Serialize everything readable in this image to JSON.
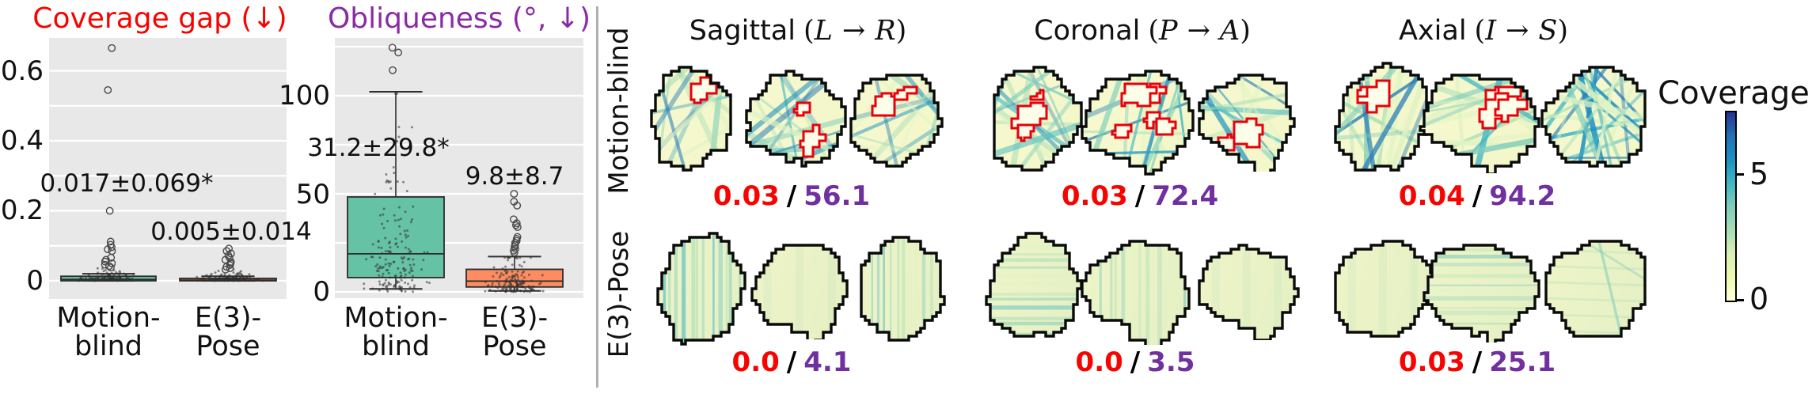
{
  "chart_data": [
    {
      "type": "box",
      "id": "coverage_gap",
      "title": "Coverage gap (↓)",
      "title_color": "#f80400",
      "ylim": [
        -0.052,
        0.694
      ],
      "yticks": [
        {
          "v": 0.6,
          "label": "0.6"
        },
        {
          "v": 0.4,
          "label": "0.4"
        },
        {
          "v": 0.2,
          "label": "0.2"
        },
        {
          "v": 0.0,
          "label": "0"
        }
      ],
      "grid_step": 0.1,
      "categories": [
        {
          "line1": "Motion-",
          "line2": "blind"
        },
        {
          "line1": "E(3)-",
          "line2": "Pose"
        }
      ],
      "series": [
        {
          "name": "Motion-blind",
          "annotation": "0.017±0.069*",
          "color": "#66c2a5",
          "box": {
            "whisker_low": 0.0,
            "q1": 0.0,
            "median": 0.004,
            "q3": 0.013,
            "whisker_high": 0.02
          },
          "outliers": [
            0.665,
            0.545,
            0.2,
            0.112,
            0.103,
            0.096,
            0.09,
            0.085,
            0.066,
            0.06,
            0.055,
            0.05,
            0.046,
            0.042,
            0.038
          ]
        },
        {
          "name": "E(3)-Pose",
          "annotation": "0.005±0.014",
          "color": "#fc8d62",
          "box": {
            "whisker_low": 0.0,
            "q1": 0.0,
            "median": 0.002,
            "q3": 0.007,
            "whisker_high": 0.013
          },
          "outliers": [
            0.092,
            0.085,
            0.078,
            0.072,
            0.066,
            0.06,
            0.054,
            0.05,
            0.045,
            0.04,
            0.036,
            0.032
          ]
        }
      ]
    },
    {
      "type": "box",
      "id": "obliqueness",
      "title": "Obliqueness (°, ↓)",
      "title_color": "#8a2ba5",
      "ylim": [
        -3,
        130
      ],
      "yticks": [
        {
          "v": 100,
          "label": "100"
        },
        {
          "v": 50,
          "label": "50"
        },
        {
          "v": 0,
          "label": "0"
        }
      ],
      "grid_step": 25,
      "categories": [
        {
          "line1": "Motion-",
          "line2": "blind"
        },
        {
          "line1": "E(3)-",
          "line2": "Pose"
        }
      ],
      "series": [
        {
          "name": "Motion-blind",
          "annotation": "31.2±29.8*",
          "color": "#66c2a5",
          "box": {
            "whisker_low": 1.5,
            "q1": 7.3,
            "median": 19.4,
            "q3": 48.4,
            "whisker_high": 102
          },
          "outliers": [
            124.5,
            122,
            113
          ]
        },
        {
          "name": "E(3)-Pose",
          "annotation": "9.8±8.7",
          "color": "#fc8d62",
          "box": {
            "whisker_low": 0.5,
            "q1": 2.5,
            "median": 5.5,
            "q3": 11.5,
            "whisker_high": 18
          },
          "outliers": [
            50,
            46,
            44,
            37,
            35,
            34,
            33,
            28,
            27,
            26,
            25,
            24,
            23,
            22,
            21,
            20
          ]
        }
      ]
    },
    {
      "type": "heatmap",
      "id": "coverage_maps",
      "separator": "/",
      "value_colors": {
        "coverage_gap": "#f80400",
        "obliqueness": "#7030a0"
      },
      "columns": [
        {
          "name": "Sagittal",
          "open": "(",
          "from": "L",
          "arrow": "→",
          "to": "R",
          "close": ")"
        },
        {
          "name": "Coronal",
          "open": "(",
          "from": "P",
          "arrow": "→",
          "to": "A",
          "close": ")"
        },
        {
          "name": "Axial",
          "open": "(",
          "from": "I",
          "arrow": "→",
          "to": "S",
          "close": ")"
        }
      ],
      "rows": [
        {
          "label": "Motion-blind",
          "cells": [
            {
              "coverage_gap": "0.03",
              "obliqueness": "56.1",
              "brains": [
                {
                  "streaks": "chaotic",
                  "red": 1,
                  "intensity": 1.0
                },
                {
                  "streaks": "chaotic",
                  "red": 2,
                  "intensity": 1.0
                },
                {
                  "streaks": "chaotic",
                  "red": 2,
                  "intensity": 1.0
                }
              ]
            },
            {
              "coverage_gap": "0.03",
              "obliqueness": "72.4",
              "brains": [
                {
                  "streaks": "chaotic",
                  "red": 3,
                  "intensity": 1.1
                },
                {
                  "streaks": "chaotic",
                  "red": 5,
                  "intensity": 1.2
                },
                {
                  "streaks": "chaotic",
                  "red": 2,
                  "intensity": 1.0
                }
              ]
            },
            {
              "coverage_gap": "0.04",
              "obliqueness": "94.2",
              "brains": [
                {
                  "streaks": "chaotic",
                  "red": 2,
                  "intensity": 1.2
                },
                {
                  "streaks": "chaotic",
                  "red": 4,
                  "intensity": 1.2
                },
                {
                  "streaks": "chaotic",
                  "red": 0,
                  "intensity": 1.7
                }
              ]
            }
          ]
        },
        {
          "label": "E(3)-Pose",
          "cells": [
            {
              "coverage_gap": "0.0",
              "obliqueness": "4.1",
              "brains": [
                {
                  "streaks": "v",
                  "red": 0,
                  "intensity": 1.0
                },
                {
                  "streaks": "plain",
                  "red": 0,
                  "intensity": 1.0
                },
                {
                  "streaks": "v",
                  "red": 0,
                  "intensity": 1.0
                }
              ]
            },
            {
              "coverage_gap": "0.0",
              "obliqueness": "3.5",
              "brains": [
                {
                  "streaks": "h",
                  "red": 0,
                  "intensity": 1.0
                },
                {
                  "streaks": "v",
                  "red": 0,
                  "intensity": 0.8
                },
                {
                  "streaks": "plain",
                  "red": 0,
                  "intensity": 1.0
                }
              ]
            },
            {
              "coverage_gap": "0.03",
              "obliqueness": "25.1",
              "brains": [
                {
                  "streaks": "plain",
                  "red": 0,
                  "intensity": 1.0
                },
                {
                  "streaks": "h",
                  "red": 0,
                  "intensity": 1.0
                },
                {
                  "streaks": "d",
                  "red": 0,
                  "intensity": 1.0
                }
              ]
            }
          ]
        }
      ],
      "colorbar": {
        "title": "Coverage",
        "tick_labels": [
          {
            "v": 5,
            "label": "5"
          },
          {
            "v": 0,
            "label": "0"
          }
        ],
        "vmin": 0,
        "vmax": 7.5,
        "colormap": "YlGnBu",
        "gradient_bottom_to_top": [
          "#ffffd9",
          "#edf8b1",
          "#d9f0b3",
          "#a8ddb5",
          "#7fcdbb",
          "#41b6c4",
          "#1d91c0",
          "#2271b5",
          "#253494"
        ]
      }
    }
  ]
}
